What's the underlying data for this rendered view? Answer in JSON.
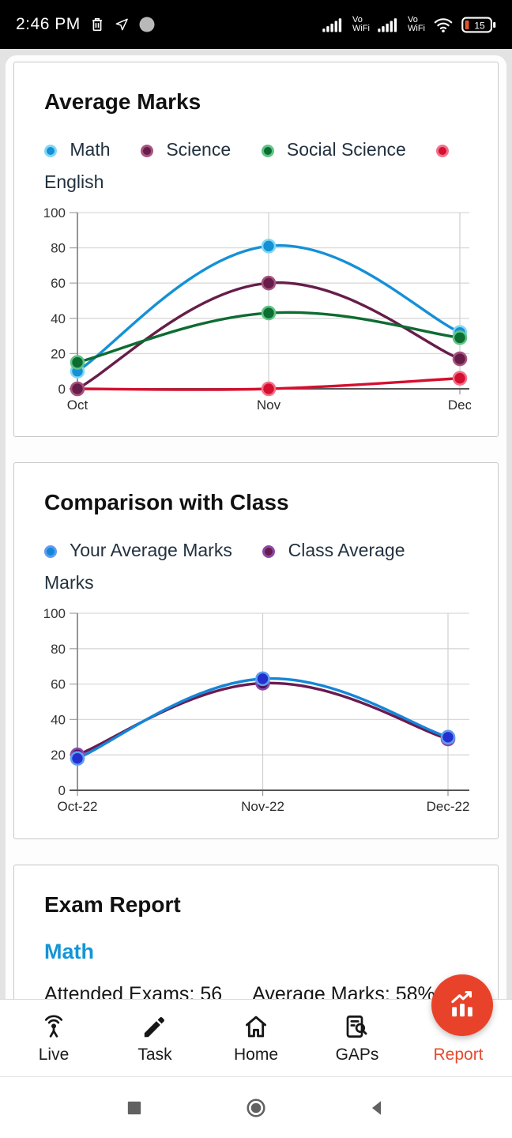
{
  "status_bar": {
    "time": "2:46 PM",
    "carrier1": {
      "line1": "Vo",
      "line2": "WiFi"
    },
    "carrier2": {
      "line1": "Vo",
      "line2": "WiFi"
    },
    "battery": "15",
    "icons": [
      "trash-icon",
      "send-arrow-icon",
      "notification-dot",
      "signal-bars-icon",
      "signal-bars-icon",
      "wifi-icon",
      "battery-icon"
    ]
  },
  "cards": {
    "average_marks": {
      "title": "Average Marks"
    },
    "comparison": {
      "title": "Comparison with Class"
    },
    "exam_report": {
      "title": "Exam Report",
      "subject": "Math",
      "subject_color": "#1495d6",
      "stat1_label": "Attended Exams:",
      "stat1_value": "56",
      "stat2_label": "Average Marks:",
      "stat2_value": "58%"
    }
  },
  "chart_data": [
    {
      "type": "line",
      "title": "Average Marks",
      "categories": [
        "Oct",
        "Nov",
        "Dec"
      ],
      "series": [
        {
          "name": "Math",
          "color": "#1590d6",
          "point_ring": "#7fd8f5",
          "values": [
            10,
            81,
            32
          ]
        },
        {
          "name": "Science",
          "color": "#671d49",
          "point_ring": "#a8537f",
          "values": [
            0,
            60,
            17
          ]
        },
        {
          "name": "Social Science",
          "color": "#0d6c32",
          "point_ring": "#5cc584",
          "values": [
            15,
            43,
            29
          ]
        },
        {
          "name": "English",
          "color": "#d50f2f",
          "point_ring": "#f2718a",
          "values": [
            0,
            0,
            6
          ],
          "point_z": -1
        }
      ],
      "ylim": [
        0,
        100
      ],
      "yticks": [
        0,
        20,
        40,
        60,
        80,
        100
      ],
      "grid": true,
      "legend_position": "top",
      "curve": "smooth"
    },
    {
      "type": "line",
      "title": "Comparison with Class",
      "categories": [
        "Oct-22",
        "Nov-22",
        "Dec-22"
      ],
      "series": [
        {
          "name": "Class Average Marks",
          "color": "#6a1a50",
          "point_fill": "#50125e",
          "point_ring": "#8a4aa8",
          "values": [
            20,
            60.5,
            29
          ],
          "point_z": 0
        },
        {
          "name": "Your Average Marks",
          "color": "#1486d8",
          "point_fill": "#2330cf",
          "point_ring": "#5e9df2",
          "values": [
            18,
            63,
            30
          ],
          "point_z": 1
        }
      ],
      "legend_order": [
        1,
        0
      ],
      "ylim": [
        0,
        100
      ],
      "yticks": [
        0,
        20,
        40,
        60,
        80,
        100
      ],
      "grid": true,
      "legend_position": "top",
      "curve": "smooth"
    }
  ],
  "bottom_nav": {
    "items": [
      {
        "label": "Live",
        "icon": "live-icon",
        "active": false
      },
      {
        "label": "Task",
        "icon": "task-pencil-icon",
        "active": false
      },
      {
        "label": "Home",
        "icon": "home-icon",
        "active": false
      },
      {
        "label": "GAPs",
        "icon": "gaps-search-icon",
        "active": false
      },
      {
        "label": "Report",
        "icon": "report-chart-icon",
        "active": true
      }
    ],
    "active_color": "#e64a2e",
    "fab_color": "#e8432a"
  },
  "android_nav": {
    "icons": [
      "recents-square-icon",
      "home-circle-icon",
      "back-triangle-icon"
    ]
  }
}
